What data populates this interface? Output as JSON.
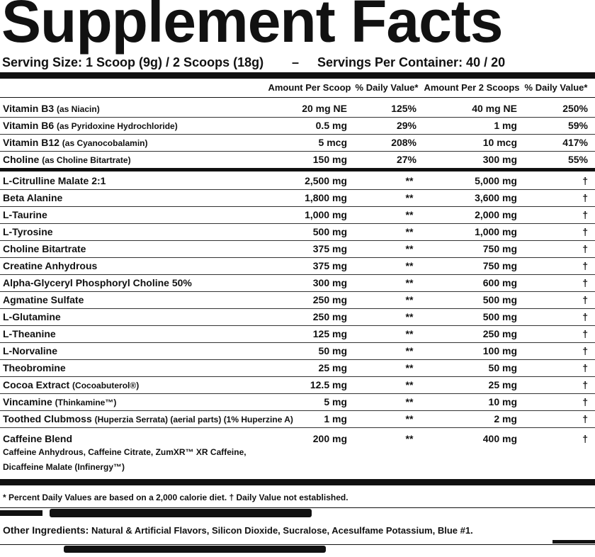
{
  "title": "Supplement Facts",
  "serving_size": "Serving Size: 1 Scoop (9g) / 2 Scoops (18g)",
  "separator": "–",
  "servings_per_container": "Servings Per Container: 40 / 20",
  "column_headers": [
    "Amount Per Scoop",
    "% Daily Value*",
    "Amount Per 2 Scoops",
    "% Daily Value*"
  ],
  "vitamins": [
    {
      "name": "Vitamin B3",
      "detail": "(as Niacin)",
      "per_scoop": "20 mg NE",
      "dv_scoop": "125%",
      "per_2_scoops": "40 mg NE",
      "dv_2_scoops": "250%"
    },
    {
      "name": "Vitamin B6",
      "detail": "(as Pyridoxine Hydrochloride)",
      "per_scoop": "0.5 mg",
      "dv_scoop": "29%",
      "per_2_scoops": "1 mg",
      "dv_2_scoops": "59%"
    },
    {
      "name": "Vitamin B12",
      "detail": "(as Cyanocobalamin)",
      "per_scoop": "5 mcg",
      "dv_scoop": "208%",
      "per_2_scoops": "10 mcg",
      "dv_2_scoops": "417%"
    },
    {
      "name": "Choline",
      "detail": "(as Choline Bitartrate)",
      "per_scoop": "150 mg",
      "dv_scoop": "27%",
      "per_2_scoops": "300 mg",
      "dv_2_scoops": "55%"
    }
  ],
  "ingredients": [
    {
      "name": "L-Citrulline Malate 2:1",
      "per_scoop": "2,500 mg",
      "dv_scoop": "**",
      "per_2_scoops": "5,000 mg",
      "dv_2_scoops": "†"
    },
    {
      "name": "Beta Alanine",
      "per_scoop": "1,800 mg",
      "dv_scoop": "**",
      "per_2_scoops": "3,600 mg",
      "dv_2_scoops": "†"
    },
    {
      "name": "L-Taurine",
      "per_scoop": "1,000 mg",
      "dv_scoop": "**",
      "per_2_scoops": "2,000 mg",
      "dv_2_scoops": "†"
    },
    {
      "name": "L-Tyrosine",
      "per_scoop": "500 mg",
      "dv_scoop": "**",
      "per_2_scoops": "1,000 mg",
      "dv_2_scoops": "†"
    },
    {
      "name": "Choline Bitartrate",
      "per_scoop": "375 mg",
      "dv_scoop": "**",
      "per_2_scoops": "750 mg",
      "dv_2_scoops": "†"
    },
    {
      "name": "Creatine Anhydrous",
      "per_scoop": "375 mg",
      "dv_scoop": "**",
      "per_2_scoops": "750 mg",
      "dv_2_scoops": "†"
    },
    {
      "name": "Alpha-Glyceryl Phosphoryl Choline 50%",
      "per_scoop": "300 mg",
      "dv_scoop": "**",
      "per_2_scoops": "600 mg",
      "dv_2_scoops": "†"
    },
    {
      "name": "Agmatine Sulfate",
      "per_scoop": "250 mg",
      "dv_scoop": "**",
      "per_2_scoops": "500 mg",
      "dv_2_scoops": "†"
    },
    {
      "name": "L-Glutamine",
      "per_scoop": "250 mg",
      "dv_scoop": "**",
      "per_2_scoops": "500 mg",
      "dv_2_scoops": "†"
    },
    {
      "name": "L-Theanine",
      "per_scoop": "125 mg",
      "dv_scoop": "**",
      "per_2_scoops": "250 mg",
      "dv_2_scoops": "†"
    },
    {
      "name": "L-Norvaline",
      "per_scoop": "50 mg",
      "dv_scoop": "**",
      "per_2_scoops": "100 mg",
      "dv_2_scoops": "†"
    },
    {
      "name": "Theobromine",
      "per_scoop": "25 mg",
      "dv_scoop": "**",
      "per_2_scoops": "50 mg",
      "dv_2_scoops": "†"
    },
    {
      "name": "Cocoa Extract",
      "detail": "(Cocoabuterol®)",
      "per_scoop": "12.5 mg",
      "dv_scoop": "**",
      "per_2_scoops": "25 mg",
      "dv_2_scoops": "†"
    },
    {
      "name": "Vincamine",
      "detail": "(Thinkamine™)",
      "per_scoop": "5 mg",
      "dv_scoop": "**",
      "per_2_scoops": "10 mg",
      "dv_2_scoops": "†"
    },
    {
      "name": "Toothed Clubmoss",
      "detail": "(Huperzia Serrata) (aerial parts) (1% Huperzine A)",
      "per_scoop": "1 mg",
      "dv_scoop": "**",
      "per_2_scoops": "2 mg",
      "dv_2_scoops": "†"
    }
  ],
  "blend": {
    "name": "Caffeine Blend",
    "per_scoop": "200 mg",
    "dv_scoop": "**",
    "per_2_scoops": "400 mg",
    "dv_2_scoops": "†",
    "components": [
      "Caffeine Anhydrous, Caffeine Citrate, ZumXR™ XR Caffeine,",
      "Dicaffeine Malate (Infinergy™)"
    ]
  },
  "footnote": "* Percent Daily Values are based on a 2,000 calorie diet. † Daily Value not established.",
  "other_ingredients": {
    "label": "Other Ingredients:",
    "text": "Natural & Artificial Flavors, Silicon Dioxide, Sucralose, Acesulfame Potassium, Blue #1."
  }
}
